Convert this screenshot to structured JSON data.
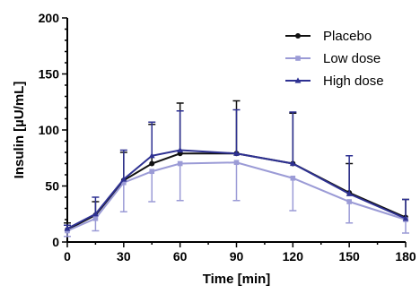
{
  "chart_data": {
    "type": "line",
    "xlabel": "Time [min]",
    "ylabel": "Insulin [µU/mL]",
    "xlim": [
      0,
      180
    ],
    "ylim": [
      0,
      200
    ],
    "x_ticks": [
      0,
      30,
      60,
      90,
      120,
      150,
      180
    ],
    "y_ticks": [
      0,
      50,
      100,
      150,
      200
    ],
    "x": [
      0,
      15,
      30,
      45,
      60,
      90,
      120,
      150,
      180
    ],
    "legend_position": "top-right",
    "grid": false,
    "series": [
      {
        "name": "Placebo",
        "color": "#111111",
        "marker": "circle",
        "values": [
          11,
          24,
          55,
          70,
          79,
          79,
          70,
          44,
          22
        ],
        "error_upper": [
          17,
          36,
          80,
          105,
          124,
          126,
          115,
          70,
          38
        ]
      },
      {
        "name": "Low dose",
        "color": "#9b9bd6",
        "marker": "square",
        "values": [
          10,
          21,
          53,
          63,
          70,
          71,
          57,
          36,
          20
        ],
        "error_lower": [
          5,
          10,
          27,
          36,
          37,
          37,
          28,
          17,
          8
        ]
      },
      {
        "name": "High dose",
        "color": "#2e3192",
        "marker": "triangle",
        "values": [
          12,
          25,
          56,
          77,
          82,
          79,
          70,
          43,
          21
        ],
        "error_upper": [
          15,
          40,
          82,
          107,
          117,
          118,
          116,
          77,
          38
        ]
      }
    ]
  }
}
